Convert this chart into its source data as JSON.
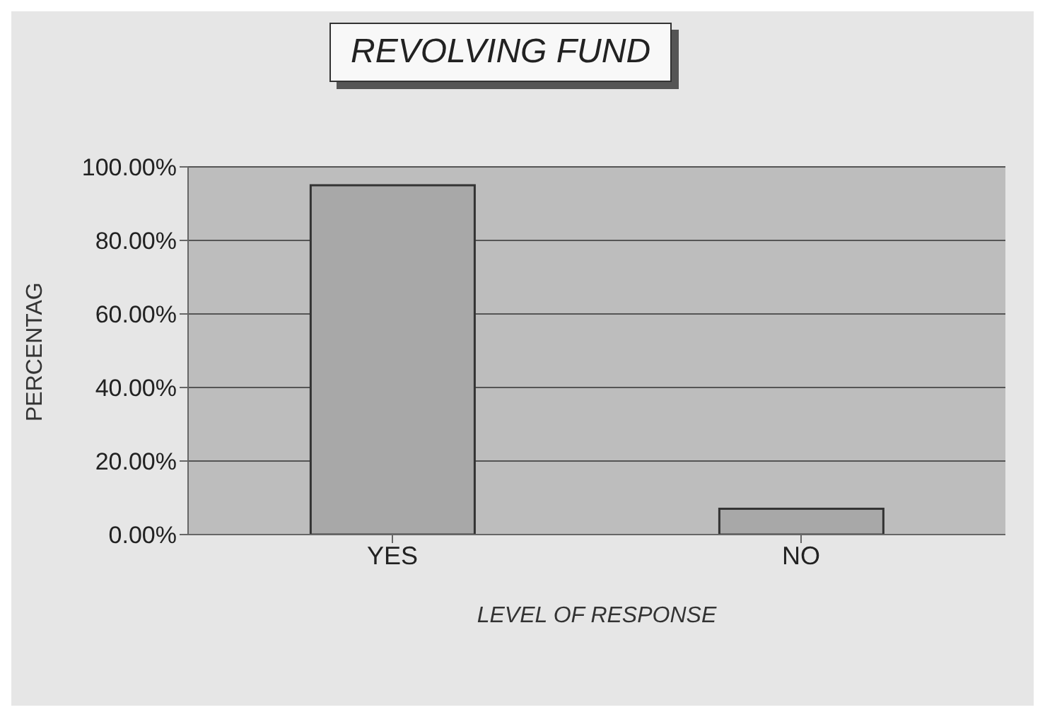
{
  "chart_data": {
    "type": "bar",
    "title": "REVOLVING FUND",
    "xlabel": "LEVEL OF RESPONSE",
    "ylabel": "PERCENTAG",
    "categories": [
      "YES",
      "NO"
    ],
    "series": [
      {
        "color": "#a8a8a8",
        "values": [
          95,
          7
        ]
      }
    ],
    "ylim": [
      0,
      100
    ],
    "yticks": [
      {
        "value": 0,
        "label": "0.00%"
      },
      {
        "value": 20,
        "label": "20.00%"
      },
      {
        "value": 40,
        "label": "40.00%"
      },
      {
        "value": 60,
        "label": "60.00%"
      },
      {
        "value": 80,
        "label": "80.00%"
      },
      {
        "value": 100,
        "label": "100.00%"
      }
    ],
    "grid": "y",
    "legend": false
  }
}
